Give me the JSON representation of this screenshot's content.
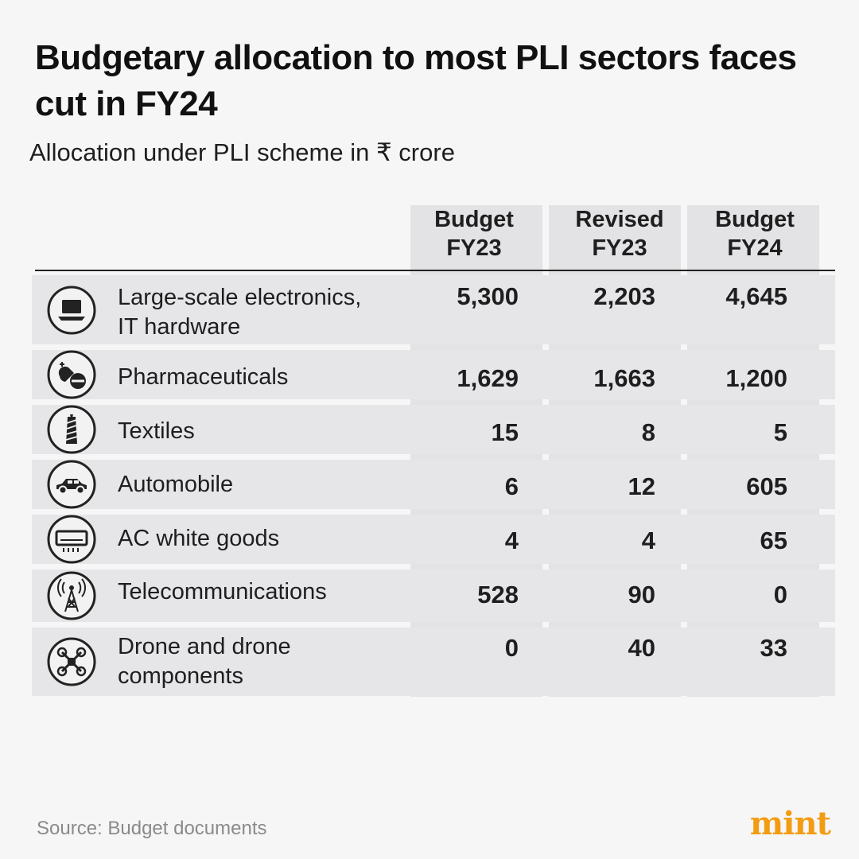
{
  "header": {
    "title": "Budgetary allocation to most PLI sectors faces cut in FY24",
    "subtitle": "Allocation under PLI scheme in ₹ crore"
  },
  "chart_data": {
    "type": "table",
    "title": "Budgetary allocation to most PLI sectors faces cut in FY24",
    "subtitle": "Allocation under PLI scheme in ₹ crore",
    "columns": [
      {
        "line1": "Budget",
        "line2": "FY23"
      },
      {
        "line1": "Revised",
        "line2": "FY23"
      },
      {
        "line1": "Budget",
        "line2": "FY24"
      }
    ],
    "rows": [
      {
        "icon": "laptop-icon",
        "label": "Large-scale electronics,\nIT hardware",
        "values": [
          "5,300",
          "2,203",
          "4,645"
        ]
      },
      {
        "icon": "pills-icon",
        "label": "Pharmaceuticals",
        "values": [
          "1,629",
          "1,663",
          "1,200"
        ]
      },
      {
        "icon": "thread-spool-icon",
        "label": "Textiles",
        "values": [
          "15",
          "8",
          "5"
        ]
      },
      {
        "icon": "car-icon",
        "label": "Automobile",
        "values": [
          "6",
          "12",
          "605"
        ]
      },
      {
        "icon": "air-conditioner-icon",
        "label": "AC white goods",
        "values": [
          "4",
          "4",
          "65"
        ]
      },
      {
        "icon": "telecom-tower-icon",
        "label": "Telecommunications",
        "values": [
          "528",
          "90",
          "0"
        ]
      },
      {
        "icon": "drone-icon",
        "label": "Drone and drone\ncomponents",
        "values": [
          "0",
          "40",
          "33"
        ]
      }
    ]
  },
  "footer": {
    "source": "Source: Budget documents",
    "logo": "mint"
  },
  "colors": {
    "logo": "#f39c12",
    "row_bg": "#e6e6e9",
    "page_bg": "#f6f6f6"
  }
}
